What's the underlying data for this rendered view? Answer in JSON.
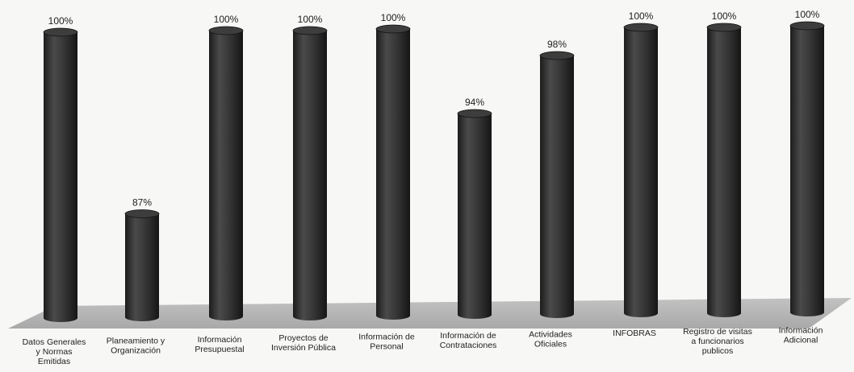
{
  "chart_data": {
    "type": "bar",
    "style": "3d-cylinder",
    "categories": [
      [
        "Datos Generales",
        "y Normas",
        "Emitidas"
      ],
      [
        "Planeamiento y",
        "Organización"
      ],
      [
        "Información",
        "Presupuestal"
      ],
      [
        "Proyectos de",
        "Inversión Pública"
      ],
      [
        "Información de",
        "Personal"
      ],
      [
        "Información de",
        "Contrataciones"
      ],
      [
        "Actividades",
        "Oficiales"
      ],
      [
        "INFOBRAS"
      ],
      [
        "Registro de visitas",
        "a funcionarios",
        "publicos"
      ],
      [
        "Información",
        "Adicional"
      ]
    ],
    "values": [
      100,
      87,
      100,
      100,
      100,
      94,
      98,
      100,
      100,
      100
    ],
    "data_labels": [
      "100%",
      "87%",
      "100%",
      "100%",
      "100%",
      "94%",
      "98%",
      "100%",
      "100%",
      "100%"
    ],
    "title": "",
    "xlabel": "",
    "ylabel": "",
    "ylim": [
      80,
      100
    ],
    "grid": false,
    "legend": "none",
    "colors": {
      "bar": "#2b2b2b",
      "bar_highlight": "#555555",
      "floor": "#b5b5b5",
      "background": "#f7f7f5"
    }
  }
}
